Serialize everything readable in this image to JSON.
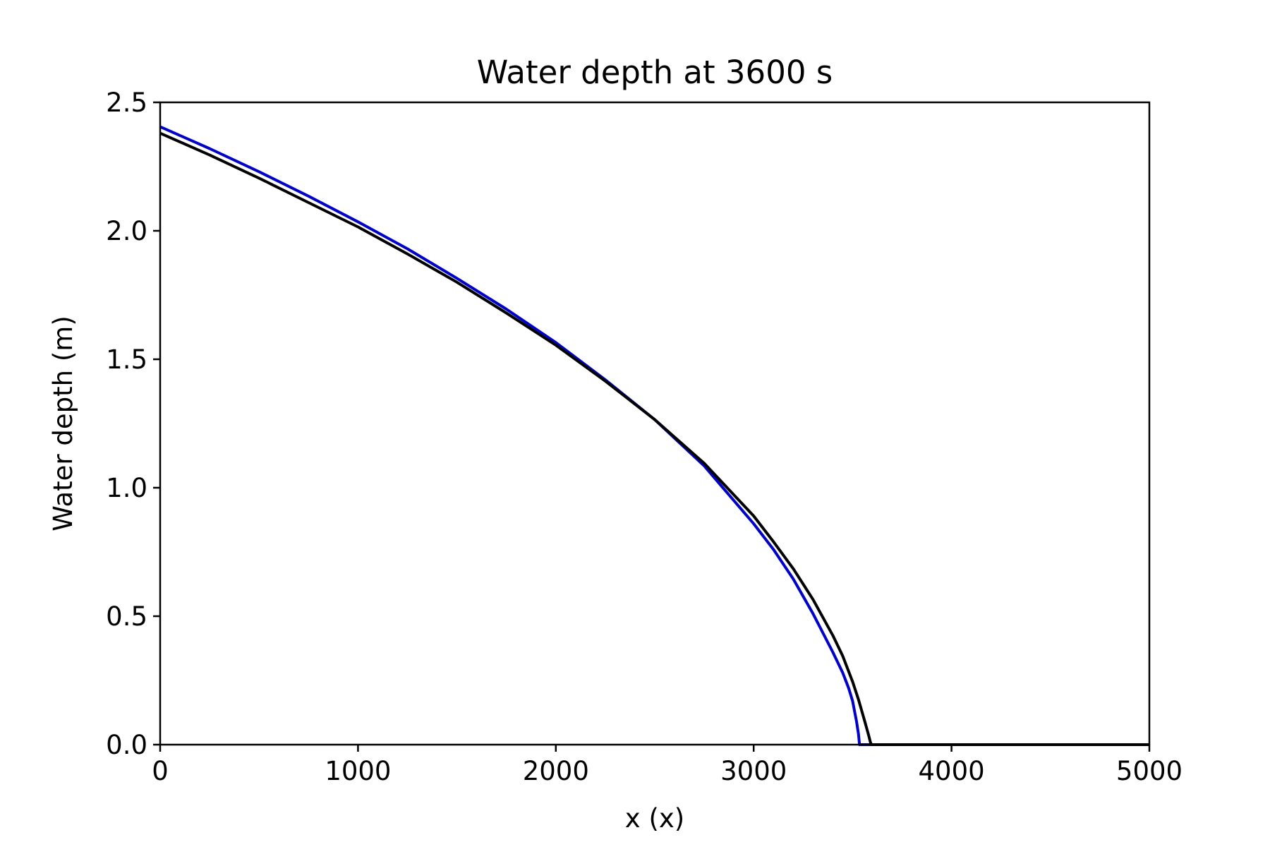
{
  "chart_data": {
    "type": "line",
    "title": "Water depth at 3600 s",
    "xlabel": "x (x)",
    "ylabel": "Water depth (m)",
    "xlim": [
      0,
      5000
    ],
    "ylim": [
      0,
      2.5
    ],
    "xticks": [
      0,
      1000,
      2000,
      3000,
      4000,
      5000
    ],
    "xtick_labels": [
      "0",
      "1000",
      "2000",
      "3000",
      "4000",
      "5000"
    ],
    "yticks": [
      0,
      0.5,
      1.0,
      1.5,
      2.0,
      2.5
    ],
    "ytick_labels": [
      "0.0",
      "0.5",
      "1.0",
      "1.5",
      "2.0",
      "2.5"
    ],
    "grid": false,
    "legend": "none",
    "series": [
      {
        "color": "#0000cc",
        "x": [
          0,
          250,
          500,
          750,
          1000,
          1250,
          1500,
          1750,
          2000,
          2250,
          2500,
          2750,
          3000,
          3100,
          3200,
          3300,
          3400,
          3450,
          3480,
          3500,
          3510,
          3520,
          3530,
          3535,
          3540,
          3560,
          3600,
          4000,
          4500,
          5000
        ],
        "y": [
          2.405,
          2.32,
          2.23,
          2.135,
          2.035,
          1.93,
          1.815,
          1.695,
          1.565,
          1.42,
          1.265,
          1.085,
          0.86,
          0.76,
          0.645,
          0.51,
          0.36,
          0.28,
          0.22,
          0.17,
          0.13,
          0.09,
          0.04,
          0.0,
          0.0,
          0.0,
          0.0,
          0.0,
          0.0,
          0.0
        ]
      },
      {
        "color": "#000000",
        "x": [
          0,
          250,
          500,
          750,
          1000,
          1250,
          1500,
          1750,
          2000,
          2250,
          2500,
          2750,
          3000,
          3100,
          3200,
          3300,
          3400,
          3450,
          3500,
          3530,
          3560,
          3580,
          3590,
          3595,
          3600,
          3610,
          4000,
          4500,
          5000
        ],
        "y": [
          2.38,
          2.295,
          2.205,
          2.11,
          2.015,
          1.91,
          1.8,
          1.68,
          1.555,
          1.415,
          1.265,
          1.095,
          0.89,
          0.79,
          0.685,
          0.565,
          0.425,
          0.345,
          0.245,
          0.175,
          0.095,
          0.04,
          0.01,
          0.0,
          0.0,
          0.0,
          0.0,
          0.0,
          0.0
        ]
      }
    ]
  }
}
